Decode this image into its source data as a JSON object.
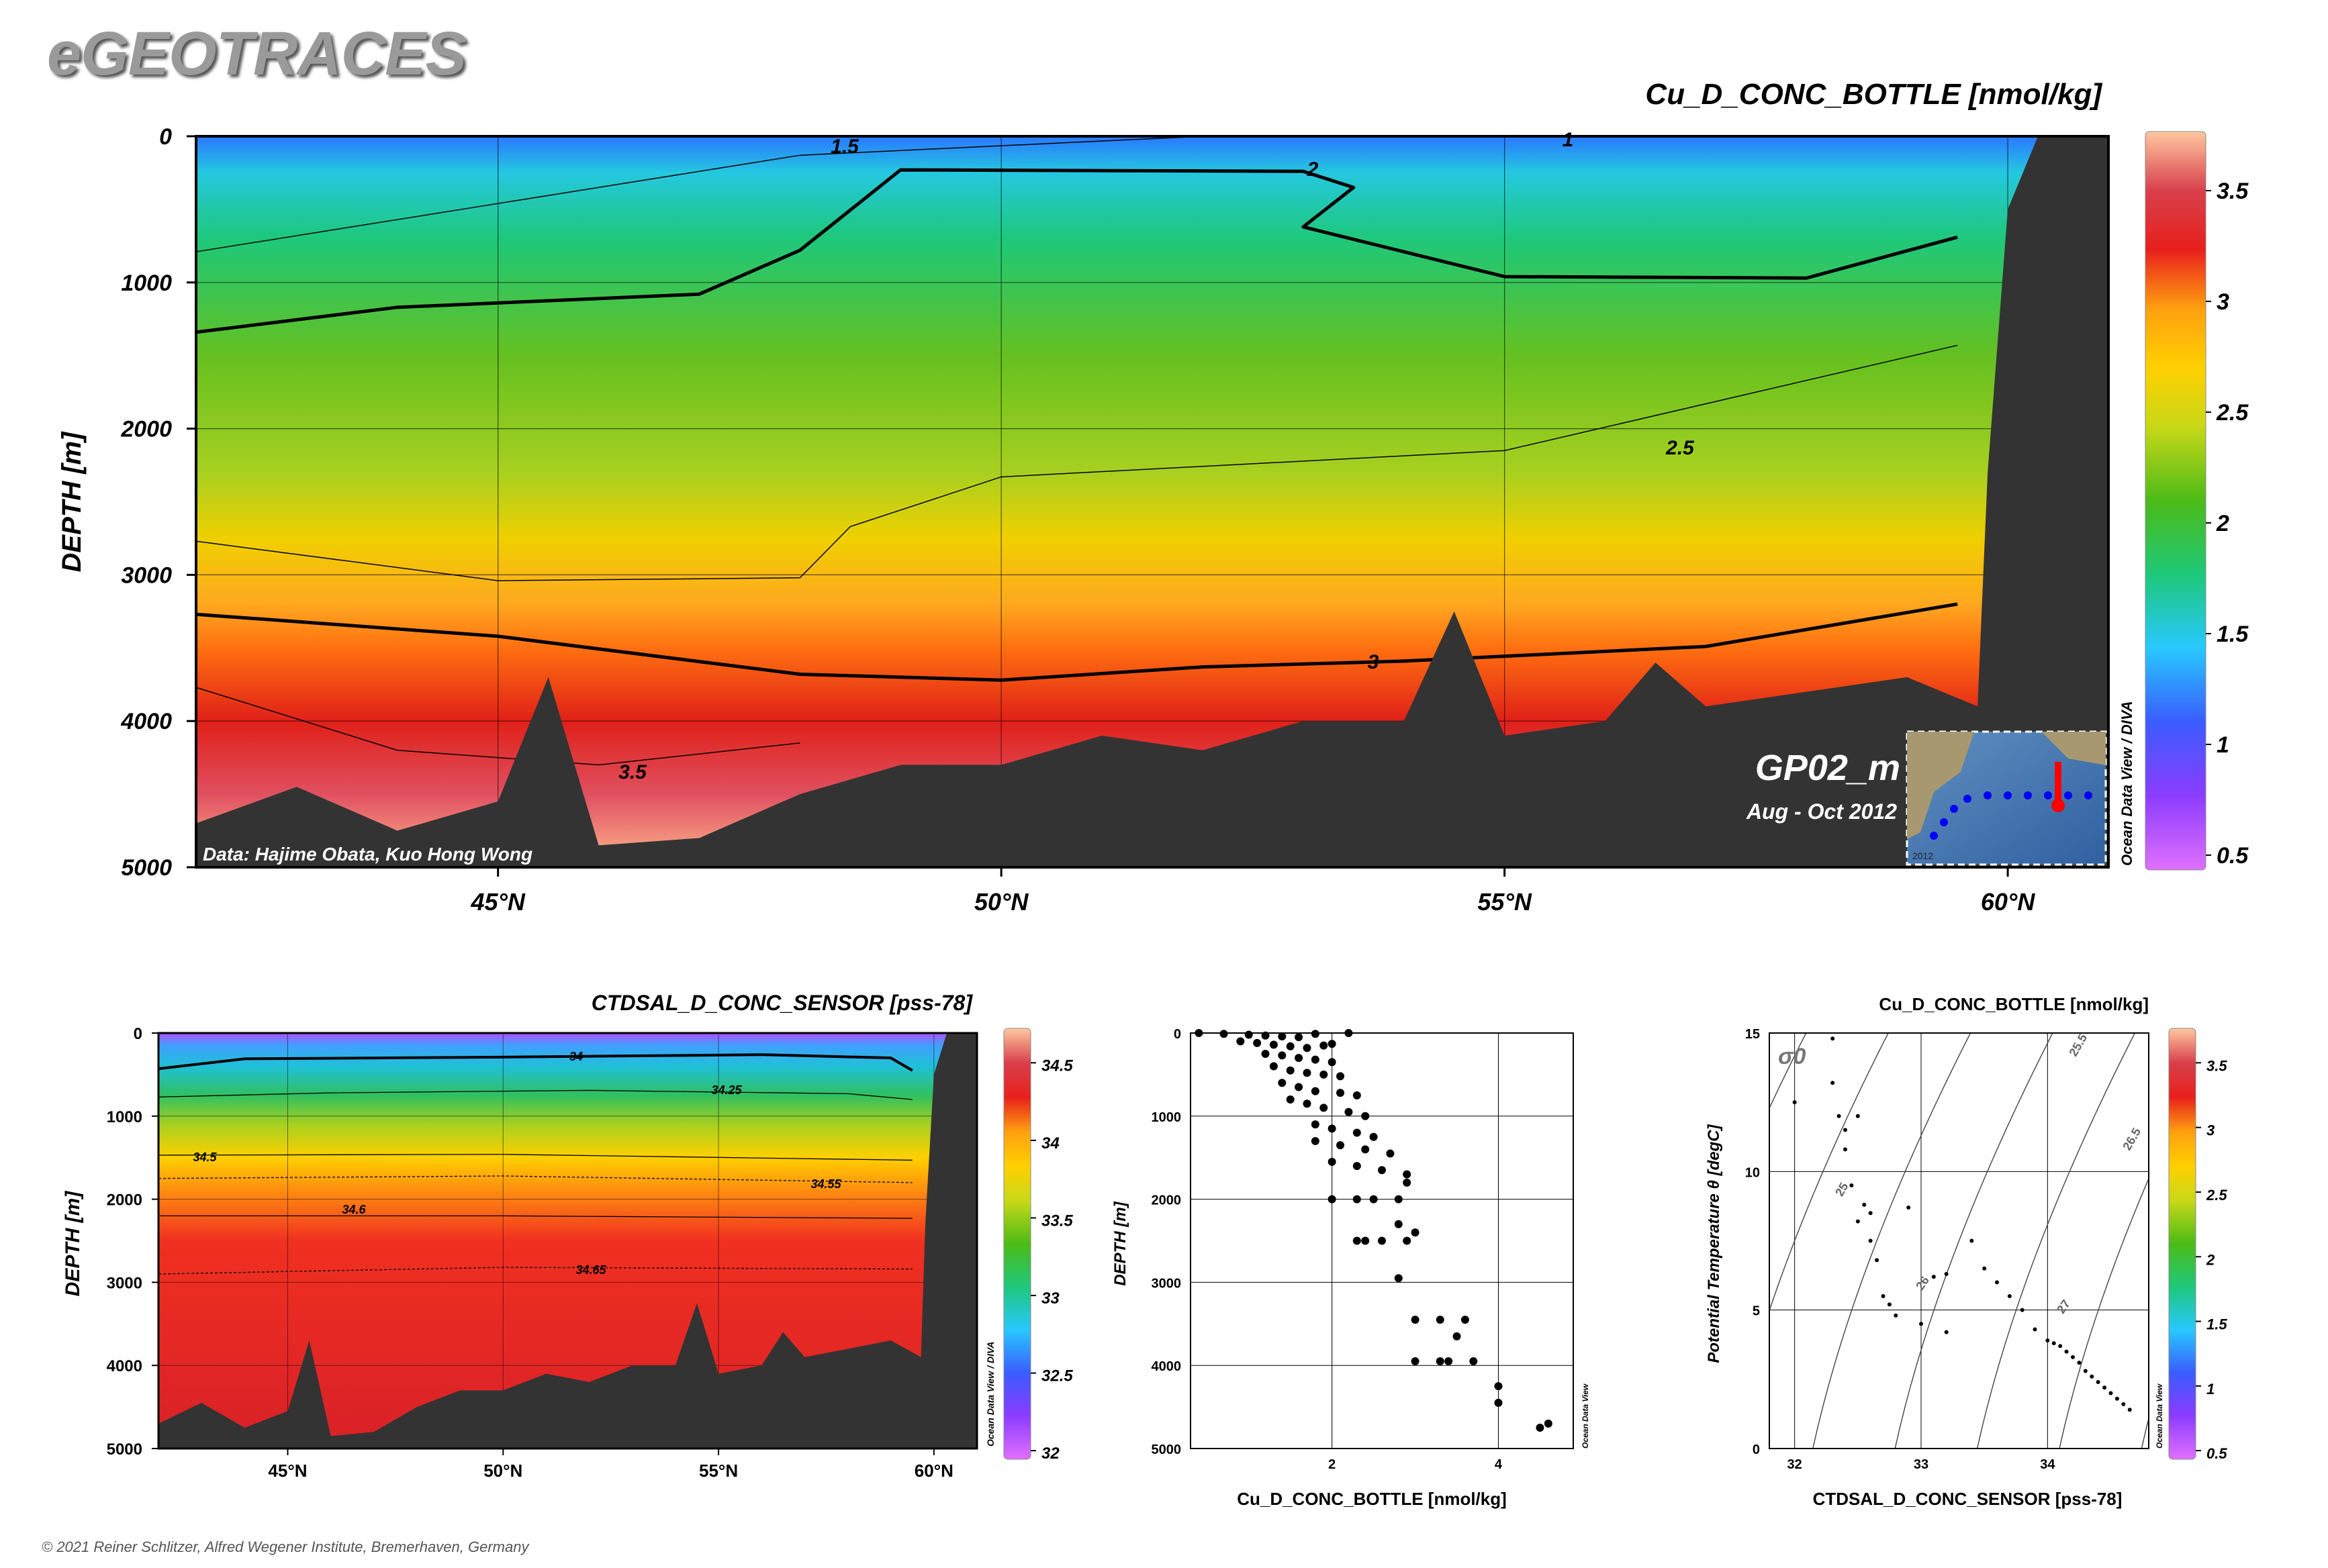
{
  "header": {
    "logo": "eGEOTRACES",
    "copyright": "© 2021 Reiner Schlitzer, Alfred Wegener Institute, Bremerhaven, Germany"
  },
  "colors": {
    "seafloor": "#333333",
    "colormap": [
      "#e070ff",
      "#8c3cff",
      "#3a5cff",
      "#28c8ff",
      "#1ec87a",
      "#4cbb17",
      "#b8d818",
      "#ffd000",
      "#ffa010",
      "#e8201c",
      "#d0303c",
      "#ffc0a0"
    ]
  },
  "main_section": {
    "title": "Cu_D_CONC_BOTTLE [nmol/kg]",
    "ylabel": "DEPTH [m]",
    "y_ticks": [
      "0",
      "1000",
      "2000",
      "3000",
      "4000",
      "5000"
    ],
    "x_ticks": [
      "45°N",
      "50°N",
      "55°N",
      "60°N"
    ],
    "credit": "Data: Hajime Obata, Kuo Hong Wong",
    "cruise": "GP02_m",
    "dates": "Aug - Oct 2012",
    "side_label": "Ocean Data View / DIVA",
    "colorbar_ticks": [
      "3.5",
      "3",
      "2.5",
      "2",
      "1.5",
      "1",
      "0.5"
    ],
    "contour_labels": [
      "1.5",
      "1",
      "2",
      "2.5",
      "3",
      "3.5"
    ],
    "map_credit": "2012"
  },
  "salinity_section": {
    "title": "CTDSAL_D_CONC_SENSOR [pss-78]",
    "ylabel": "DEPTH [m]",
    "y_ticks": [
      "0",
      "1000",
      "2000",
      "3000",
      "4000",
      "5000"
    ],
    "x_ticks": [
      "45°N",
      "50°N",
      "55°N",
      "60°N"
    ],
    "side_label": "Ocean Data View / DIVA",
    "colorbar_ticks": [
      "34.5",
      "34",
      "33.5",
      "33",
      "32.5",
      "32"
    ],
    "contour_labels": [
      "34",
      "34.25",
      "34.5",
      "34.55",
      "34.6",
      "34.65"
    ]
  },
  "profile_plot": {
    "xlabel": "Cu_D_CONC_BOTTLE [nmol/kg]",
    "ylabel": "DEPTH [m]",
    "y_ticks": [
      "0",
      "1000",
      "2000",
      "3000",
      "4000",
      "5000"
    ],
    "x_ticks": [
      "2",
      "4"
    ],
    "side_label": "Ocean Data View"
  },
  "ts_plot": {
    "title": "Cu_D_CONC_BOTTLE [nmol/kg]",
    "xlabel": "CTDSAL_D_CONC_SENSOR [pss-78]",
    "ylabel": "Potential Temperature θ [degC]",
    "y_ticks": [
      "15",
      "10",
      "5",
      "0"
    ],
    "x_ticks": [
      "32",
      "33",
      "34"
    ],
    "sigma_label": "σ0",
    "isopycnal_labels": [
      "25.5",
      "26.5",
      "25",
      "26",
      "27"
    ],
    "side_label": "Ocean Data View",
    "colorbar_ticks": [
      "3.5",
      "3",
      "2.5",
      "2",
      "1.5",
      "1",
      "0.5"
    ]
  },
  "chart_data": [
    {
      "type": "heatmap",
      "title": "Cu_D_CONC_BOTTLE [nmol/kg]",
      "xlabel": "",
      "ylabel": "DEPTH [m]",
      "xlim": [
        42,
        61
      ],
      "ylim": [
        5000,
        0
      ],
      "colorbar_range": [
        0.5,
        4.0
      ],
      "contour_levels": [
        1,
        1.5,
        2,
        2.5,
        3,
        3.5
      ],
      "contours": {
        "2": [
          [
            42,
            1340
          ],
          [
            44,
            1170
          ],
          [
            47,
            1080
          ],
          [
            48,
            780
          ],
          [
            49,
            230
          ],
          [
            53,
            240
          ],
          [
            53.5,
            350
          ],
          [
            53,
            620
          ],
          [
            55,
            960
          ],
          [
            58,
            970
          ],
          [
            59.5,
            690
          ]
        ],
        "3": [
          [
            42,
            3270
          ],
          [
            45,
            3420
          ],
          [
            48,
            3680
          ],
          [
            50,
            3720
          ],
          [
            52,
            3630
          ],
          [
            54,
            3590
          ],
          [
            57,
            3490
          ],
          [
            59.5,
            3200
          ]
        ],
        "2.5": [
          [
            42,
            2770
          ],
          [
            45,
            3040
          ],
          [
            48,
            3020
          ],
          [
            48.5,
            2670
          ],
          [
            50,
            2330
          ],
          [
            55,
            2150
          ],
          [
            59.5,
            1430
          ]
        ],
        "1.5": [
          [
            42,
            790
          ],
          [
            45,
            460
          ],
          [
            48,
            130
          ],
          [
            52,
            0
          ]
        ],
        "3.5": [
          [
            42,
            3770
          ],
          [
            44,
            4200
          ],
          [
            46,
            4300
          ],
          [
            48,
            4150
          ]
        ]
      },
      "bathymetry": [
        [
          42,
          4700
        ],
        [
          43,
          4450
        ],
        [
          44,
          4750
        ],
        [
          45,
          4550
        ],
        [
          45.5,
          3700
        ],
        [
          46,
          4850
        ],
        [
          47,
          4800
        ],
        [
          48,
          4500
        ],
        [
          49,
          4300
        ],
        [
          50,
          4300
        ],
        [
          51,
          4100
        ],
        [
          52,
          4200
        ],
        [
          53,
          4000
        ],
        [
          54,
          4000
        ],
        [
          54.5,
          3250
        ],
        [
          55,
          4100
        ],
        [
          56,
          4000
        ],
        [
          56.5,
          3600
        ],
        [
          57,
          3900
        ],
        [
          58,
          3800
        ],
        [
          59,
          3700
        ],
        [
          59.7,
          3900
        ],
        [
          59.8,
          2300
        ],
        [
          60,
          500
        ],
        [
          60.3,
          0
        ],
        [
          61,
          0
        ]
      ]
    },
    {
      "type": "heatmap",
      "title": "CTDSAL_D_CONC_SENSOR [pss-78]",
      "xlabel": "",
      "ylabel": "DEPTH [m]",
      "xlim": [
        42,
        61
      ],
      "ylim": [
        5000,
        0
      ],
      "colorbar_range": [
        31.8,
        34.8
      ],
      "contour_levels": [
        34,
        34.25,
        34.5,
        34.55,
        34.6,
        34.65
      ],
      "contours": {
        "34": [
          [
            42,
            430
          ],
          [
            44,
            310
          ],
          [
            50,
            290
          ],
          [
            56,
            260
          ],
          [
            59,
            300
          ],
          [
            59.5,
            450
          ]
        ],
        "34.25": [
          [
            42,
            770
          ],
          [
            46,
            720
          ],
          [
            52,
            690
          ],
          [
            58,
            730
          ],
          [
            59.5,
            800
          ]
        ],
        "34.5": [
          [
            42,
            1470
          ],
          [
            50,
            1460
          ],
          [
            59.5,
            1530
          ]
        ],
        "34.55": [
          [
            42,
            1750
          ],
          [
            50,
            1720
          ],
          [
            59.5,
            1800
          ]
        ],
        "34.6": [
          [
            42,
            2200
          ],
          [
            50,
            2200
          ],
          [
            59.5,
            2230
          ]
        ],
        "34.65": [
          [
            42,
            2900
          ],
          [
            50,
            2820
          ],
          [
            59.5,
            2840
          ]
        ]
      }
    },
    {
      "type": "scatter",
      "xlabel": "Cu_D_CONC_BOTTLE [nmol/kg]",
      "ylabel": "DEPTH [m]",
      "xlim": [
        0.3,
        4.9
      ],
      "ylim": [
        5000,
        0
      ],
      "x": [
        0.4,
        0.7,
        1.0,
        1.2,
        1.4,
        1.6,
        1.8,
        2.2,
        0.9,
        1.1,
        1.3,
        1.5,
        1.7,
        1.9,
        2.0,
        1.2,
        1.4,
        1.6,
        1.8,
        2.0,
        1.3,
        1.5,
        1.7,
        1.9,
        2.1,
        1.4,
        1.6,
        1.8,
        2.1,
        2.3,
        1.5,
        1.7,
        1.9,
        2.2,
        2.4,
        1.8,
        2.0,
        2.3,
        2.5,
        1.8,
        2.1,
        2.4,
        2.7,
        2.0,
        2.3,
        2.6,
        2.9,
        2.0,
        2.3,
        2.5,
        2.8,
        2.9,
        2.3,
        2.9,
        3.0,
        2.4,
        2.6,
        2.8,
        2.8,
        3.3,
        3.6,
        3.0,
        3.5,
        3.4,
        3.0,
        3.3,
        3.7,
        4.0,
        4.0,
        4.5,
        4.6
      ],
      "y": [
        0,
        10,
        20,
        30,
        40,
        50,
        10,
        0,
        100,
        120,
        140,
        160,
        180,
        150,
        130,
        250,
        270,
        300,
        320,
        350,
        400,
        450,
        480,
        500,
        520,
        600,
        650,
        700,
        720,
        750,
        800,
        850,
        900,
        950,
        1000,
        1100,
        1150,
        1200,
        1250,
        1300,
        1350,
        1400,
        1450,
        1550,
        1600,
        1650,
        1700,
        2000,
        2000,
        2000,
        2000,
        1800,
        2500,
        2500,
        2400,
        2500,
        2500,
        2300,
        2950,
        3450,
        3450,
        3450,
        3650,
        3950,
        3950,
        3950,
        3950,
        4250,
        4450,
        4750,
        4700
      ]
    },
    {
      "type": "scatter",
      "title": "Cu_D_CONC_BOTTLE [nmol/kg]",
      "xlabel": "CTDSAL_D_CONC_SENSOR [pss-78]",
      "ylabel": "Potential Temperature θ [degC]",
      "xlim": [
        31.8,
        34.8
      ],
      "ylim": [
        0,
        15
      ],
      "x": [
        32.0,
        32.3,
        32.35,
        32.4,
        32.4,
        32.45,
        32.5,
        32.55,
        32.6,
        32.65,
        32.7,
        32.75,
        32.8,
        33.0,
        33.1,
        33.2,
        33.4,
        33.5,
        33.6,
        33.7,
        33.8,
        33.9,
        34.0,
        34.05,
        34.1,
        34.15,
        34.2,
        34.25,
        34.3,
        34.35,
        34.4,
        34.45,
        34.5,
        34.55,
        34.6,
        34.65,
        33.2,
        32.3,
        32.5,
        32.6,
        32.9
      ],
      "y": [
        12.5,
        13.2,
        12.0,
        11.5,
        10.8,
        9.5,
        8.2,
        8.8,
        7.5,
        6.8,
        5.5,
        5.2,
        4.8,
        4.5,
        6.2,
        4.2,
        7.5,
        6.5,
        6.0,
        5.5,
        5.0,
        4.3,
        3.9,
        3.8,
        3.7,
        3.5,
        3.3,
        3.1,
        2.8,
        2.6,
        2.4,
        2.2,
        2.0,
        1.8,
        1.6,
        1.4,
        6.3,
        14.8,
        12.0,
        8.5,
        8.7
      ]
    }
  ]
}
